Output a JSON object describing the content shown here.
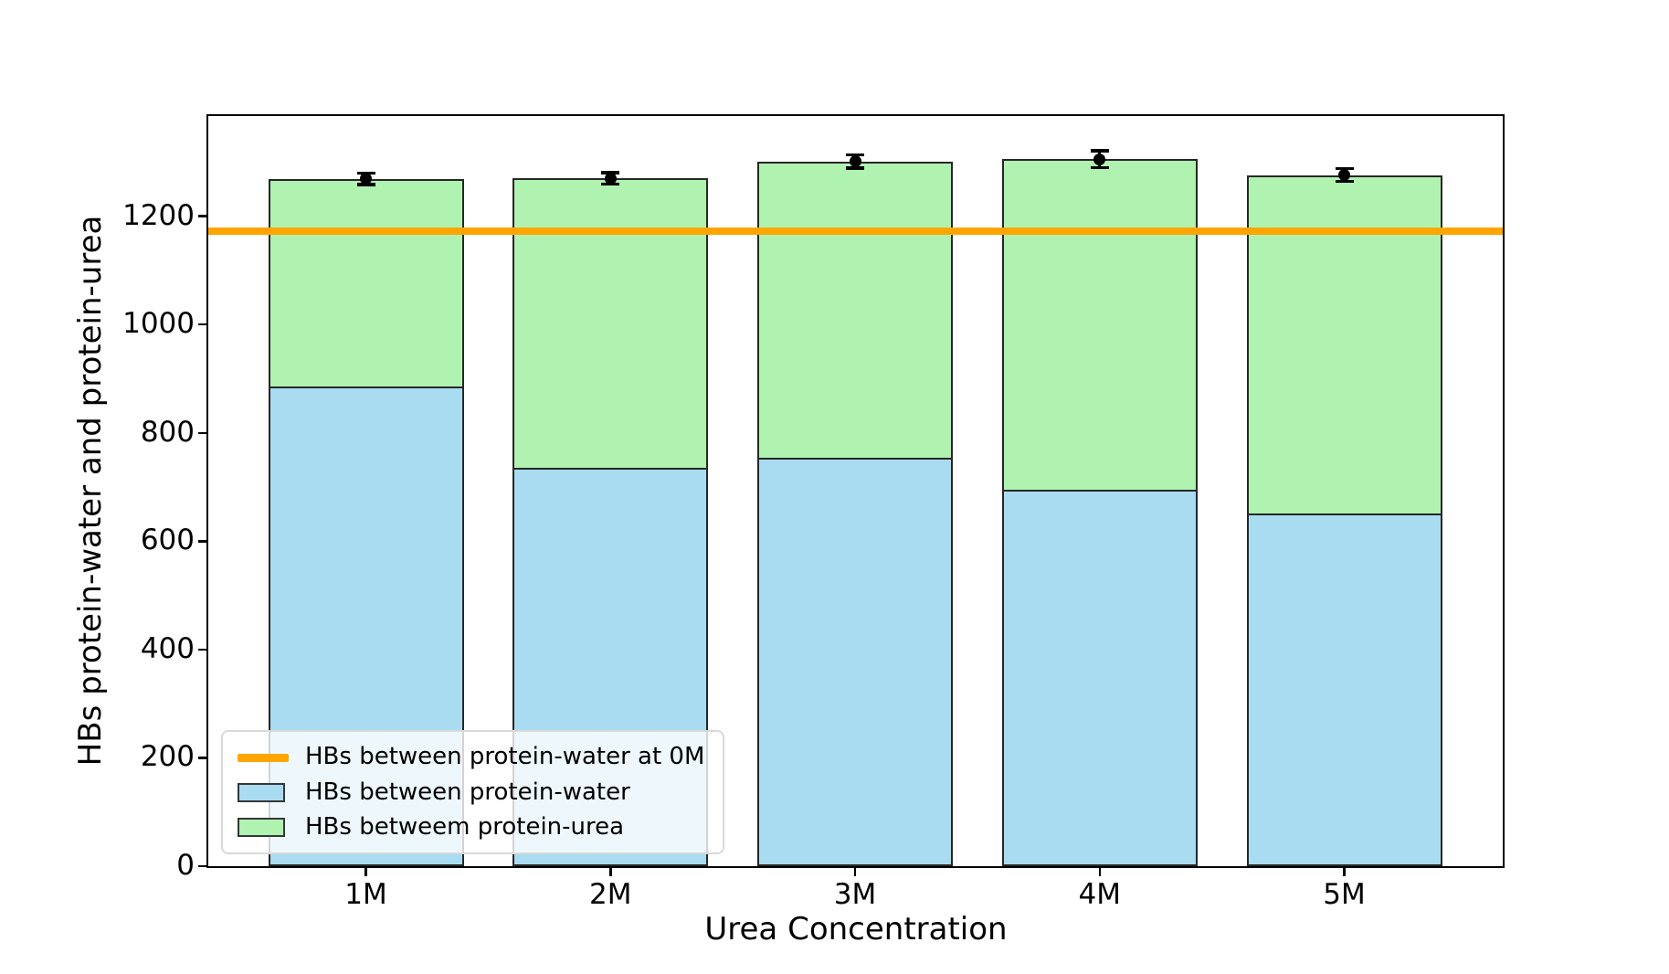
{
  "chart_data": {
    "type": "bar",
    "stacked": true,
    "title": "",
    "xlabel": "Urea Concentration",
    "ylabel": "HBs protein-water and protein-urea",
    "categories": [
      "1M",
      "2M",
      "3M",
      "4M",
      "5M"
    ],
    "series": [
      {
        "name": "HBs between protein-water",
        "color": "#A9DCF0",
        "values": [
          886,
          736,
          754,
          695,
          651
        ]
      },
      {
        "name": "HBs betweem protein-urea",
        "color": "#B0F2B0",
        "values": [
          383,
          534,
          547,
          610,
          625
        ]
      }
    ],
    "stack_totals": [
      1269,
      1270,
      1301,
      1305,
      1276
    ],
    "error_bars": [
      11,
      11,
      13,
      16,
      12
    ],
    "reference_line": {
      "label": "HBs between protein-water at 0M",
      "value": 1173,
      "color": "#FFA500"
    },
    "yticks": [
      0,
      200,
      400,
      600,
      800,
      1000,
      1200
    ],
    "ylim": [
      0,
      1385
    ],
    "bar_edge_color": "#262626",
    "error_color": "#000000",
    "grid": false,
    "legend": {
      "position": "lower left",
      "items": [
        {
          "label": "HBs between protein-water at 0M",
          "swatch": "line",
          "color": "#FFA500"
        },
        {
          "label": "HBs between protein-water",
          "swatch": "patch",
          "color": "#A9DCF0"
        },
        {
          "label": "HBs betweem protein-urea",
          "swatch": "patch",
          "color": "#B0F2B0"
        }
      ]
    }
  }
}
